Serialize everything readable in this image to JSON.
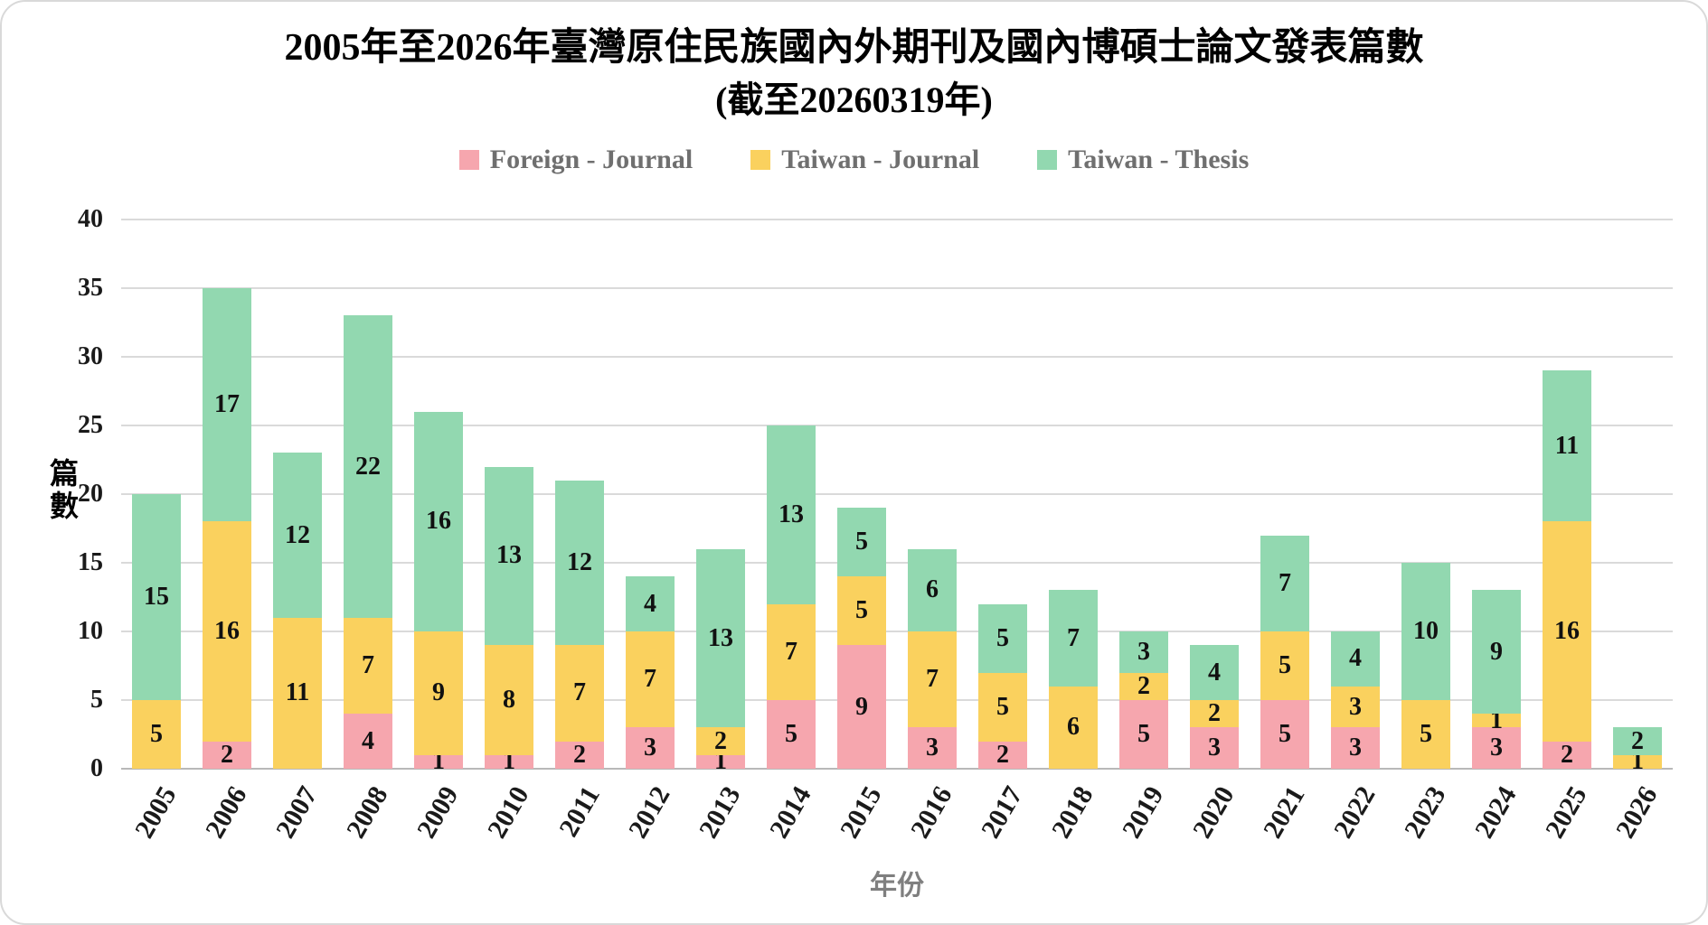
{
  "title": {
    "line1": "2005年至2026年臺灣原住民族國內外期刊及國內博碩士論文發表篇數",
    "line2": "(截至20260319年)"
  },
  "legend": {
    "items": [
      {
        "label": "Foreign - Journal",
        "color": "#F6A6AE"
      },
      {
        "label": "Taiwan - Journal",
        "color": "#FAD15E"
      },
      {
        "label": "Taiwan - Thesis",
        "color": "#92D8B0"
      }
    ]
  },
  "axes": {
    "y_label": "篇數",
    "x_label": "年份",
    "y_min": 0,
    "y_max": 40,
    "y_step": 5
  },
  "chart_data": {
    "type": "bar",
    "stacked": true,
    "title": "2005年至2026年臺灣原住民族國內外期刊及國內博碩士論文發表篇數 (截至20260319年)",
    "xlabel": "年份",
    "ylabel": "篇數",
    "ylim": [
      0,
      40
    ],
    "y_tick_step": 5,
    "grid": true,
    "legend_position": "top",
    "categories": [
      "2005",
      "2006",
      "2007",
      "2008",
      "2009",
      "2010",
      "2011",
      "2012",
      "2013",
      "2014",
      "2015",
      "2016",
      "2017",
      "2018",
      "2019",
      "2020",
      "2021",
      "2022",
      "2023",
      "2024",
      "2025",
      "2026"
    ],
    "series": [
      {
        "name": "Foreign - Journal",
        "color": "#F6A6AE",
        "values": [
          0,
          2,
          0,
          4,
          1,
          1,
          2,
          3,
          1,
          5,
          9,
          3,
          2,
          0,
          5,
          3,
          5,
          3,
          0,
          3,
          2,
          0
        ]
      },
      {
        "name": "Taiwan - Journal",
        "color": "#FAD15E",
        "values": [
          5,
          16,
          11,
          7,
          9,
          8,
          7,
          7,
          2,
          7,
          5,
          7,
          5,
          6,
          2,
          2,
          5,
          3,
          5,
          1,
          16,
          1
        ]
      },
      {
        "name": "Taiwan - Thesis",
        "color": "#92D8B0",
        "values": [
          15,
          17,
          12,
          22,
          16,
          13,
          12,
          4,
          13,
          13,
          5,
          6,
          5,
          7,
          3,
          4,
          7,
          4,
          10,
          9,
          11,
          2
        ]
      }
    ]
  }
}
